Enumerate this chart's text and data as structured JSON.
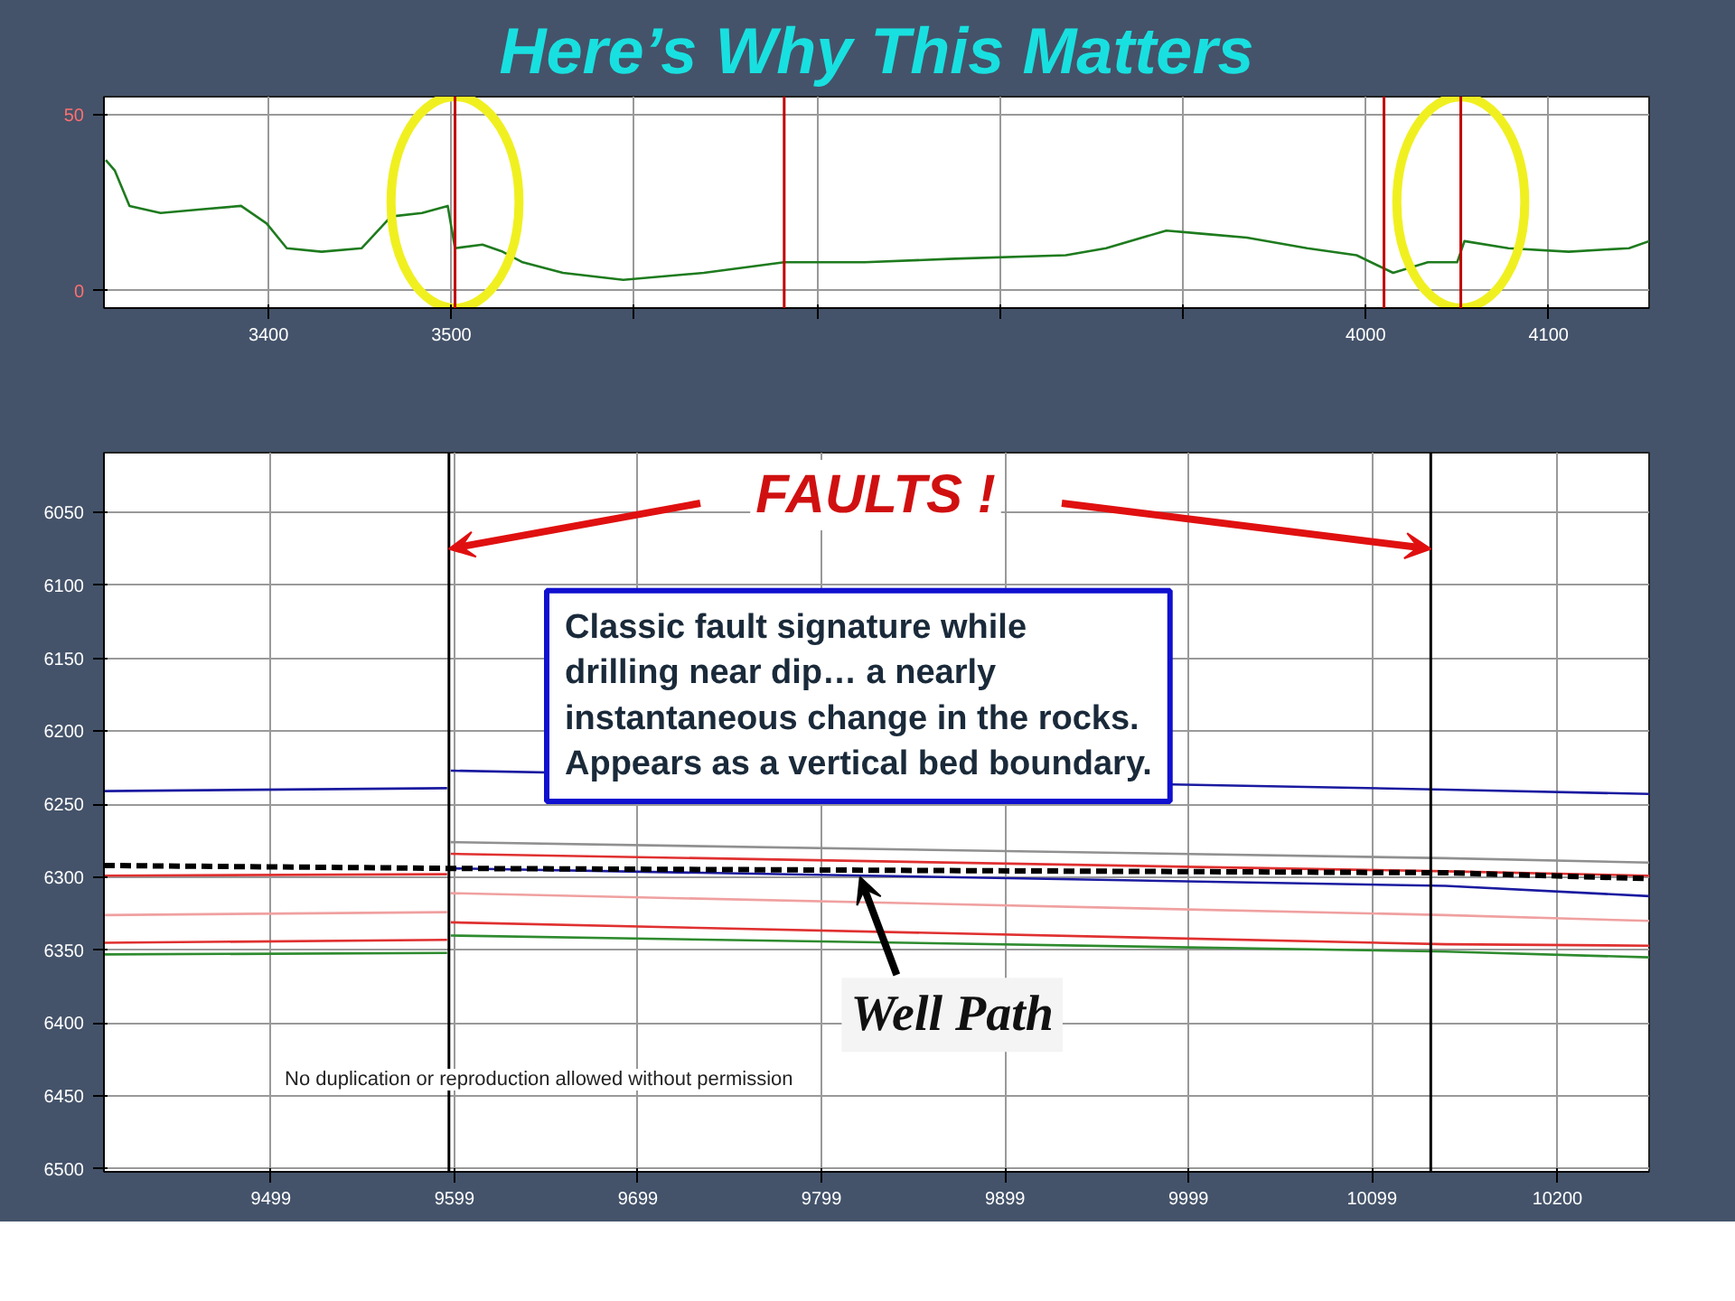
{
  "chart_data": [
    {
      "type": "line",
      "title": "Here’s Why This Matters",
      "xlim": [
        3310,
        4155
      ],
      "ylim": [
        -5,
        55
      ],
      "xticks": [
        3400,
        3500,
        {
          "value": 3600,
          "label": null
        },
        {
          "value": 3700,
          "label": null
        },
        {
          "value": 3800,
          "label": null
        },
        {
          "value": 3900,
          "label": null
        },
        4000,
        4100
      ],
      "yticks": [
        0,
        50
      ],
      "grid": true,
      "x": [
        3311,
        3316,
        3324,
        3341,
        3363,
        3385,
        3399,
        3410,
        3429,
        3451,
        3467,
        3484,
        3498,
        3502,
        3517,
        3528,
        3539,
        3561,
        3594,
        3638,
        3682,
        3726,
        3775,
        3836,
        3858,
        3891,
        3913,
        3935,
        3968,
        3995,
        4015,
        4034,
        4050,
        4054,
        4078,
        4111,
        4144,
        4155
      ],
      "series": [
        {
          "color": "#1e7b1e",
          "values": [
            37,
            34,
            24,
            22,
            23,
            24,
            19,
            12,
            11,
            12,
            21,
            22,
            24,
            12,
            13,
            11,
            8,
            5,
            3,
            5,
            8,
            8,
            9,
            10,
            12,
            17,
            16,
            15,
            12,
            10,
            5,
            8,
            8,
            14,
            12,
            11,
            12,
            14
          ]
        }
      ],
      "ref_lines": [
        {
          "axis": "x",
          "value": 3502,
          "color": "#c00000"
        },
        {
          "axis": "x",
          "value": 3682,
          "color": "#c00000"
        },
        {
          "axis": "x",
          "value": 4010,
          "color": "#c00000"
        },
        {
          "axis": "x",
          "value": 4052,
          "color": "#c00000"
        }
      ]
    },
    {
      "type": "line",
      "xlim": [
        9408,
        10250
      ],
      "ylim": [
        6502,
        6009
      ],
      "xticks": [
        9499,
        9599,
        9699,
        9799,
        9899,
        9999,
        10099,
        10200
      ],
      "yticks": [
        6050,
        6100,
        6150,
        6200,
        6250,
        6300,
        6350,
        6400,
        6450,
        6500
      ],
      "grid": true,
      "series": [
        {
          "color": "#1a1aa0",
          "x": [
            9408,
            9595,
            9596,
            9597,
            10139,
            10250
          ],
          "values": [
            6241,
            6239,
            null,
            6227,
            6240,
            6243
          ]
        },
        {
          "color": "#909090",
          "x": [
            9597,
            10139,
            10250
          ],
          "values": [
            6276,
            6287,
            6290
          ]
        },
        {
          "color": "#e03030",
          "x": [
            9408,
            9595,
            9596,
            9597,
            10139,
            10250
          ],
          "values": [
            6299,
            6298,
            null,
            6284,
            6296,
            6299
          ]
        },
        {
          "color": "#1a1aa0",
          "x": [
            9597,
            10139,
            10250
          ],
          "values": [
            6294,
            6306,
            6313
          ]
        },
        {
          "color": "#f0a0a0",
          "x": [
            9408,
            9595,
            9596,
            9597,
            10139,
            10250
          ],
          "values": [
            6326,
            6324,
            null,
            6311,
            6326,
            6330
          ]
        },
        {
          "color": "#e03030",
          "x": [
            9408,
            9595,
            9596,
            9597,
            10139,
            10250
          ],
          "values": [
            6345,
            6343,
            null,
            6331,
            6346,
            6347
          ]
        },
        {
          "color": "#2e8b2e",
          "x": [
            9408,
            9595,
            9596,
            9597,
            10139,
            10250
          ],
          "values": [
            6353,
            6352,
            null,
            6340,
            6351,
            6355
          ]
        },
        {
          "color": "#000000",
          "line_style": "dashed",
          "x": [
            9408,
            9596,
            10139,
            10250
          ],
          "values": [
            6292,
            6294,
            6297,
            6301
          ]
        }
      ],
      "ref_lines": [
        {
          "axis": "x",
          "value": 9596,
          "color": "#000000"
        },
        {
          "axis": "x",
          "value": 10131,
          "color": "#000000"
        }
      ],
      "annotations": [
        {
          "text": "FAULTS !",
          "x": 9596,
          "y": 6075
        },
        "Classic fault signature while drilling near dip… a nearly instantaneous change in the rocks.  Appears as a vertical bed boundary.",
        {
          "text": "Well Path",
          "x": 9820,
          "y": 6297
        },
        "No duplication or reproduction allowed without permission"
      ]
    }
  ]
}
